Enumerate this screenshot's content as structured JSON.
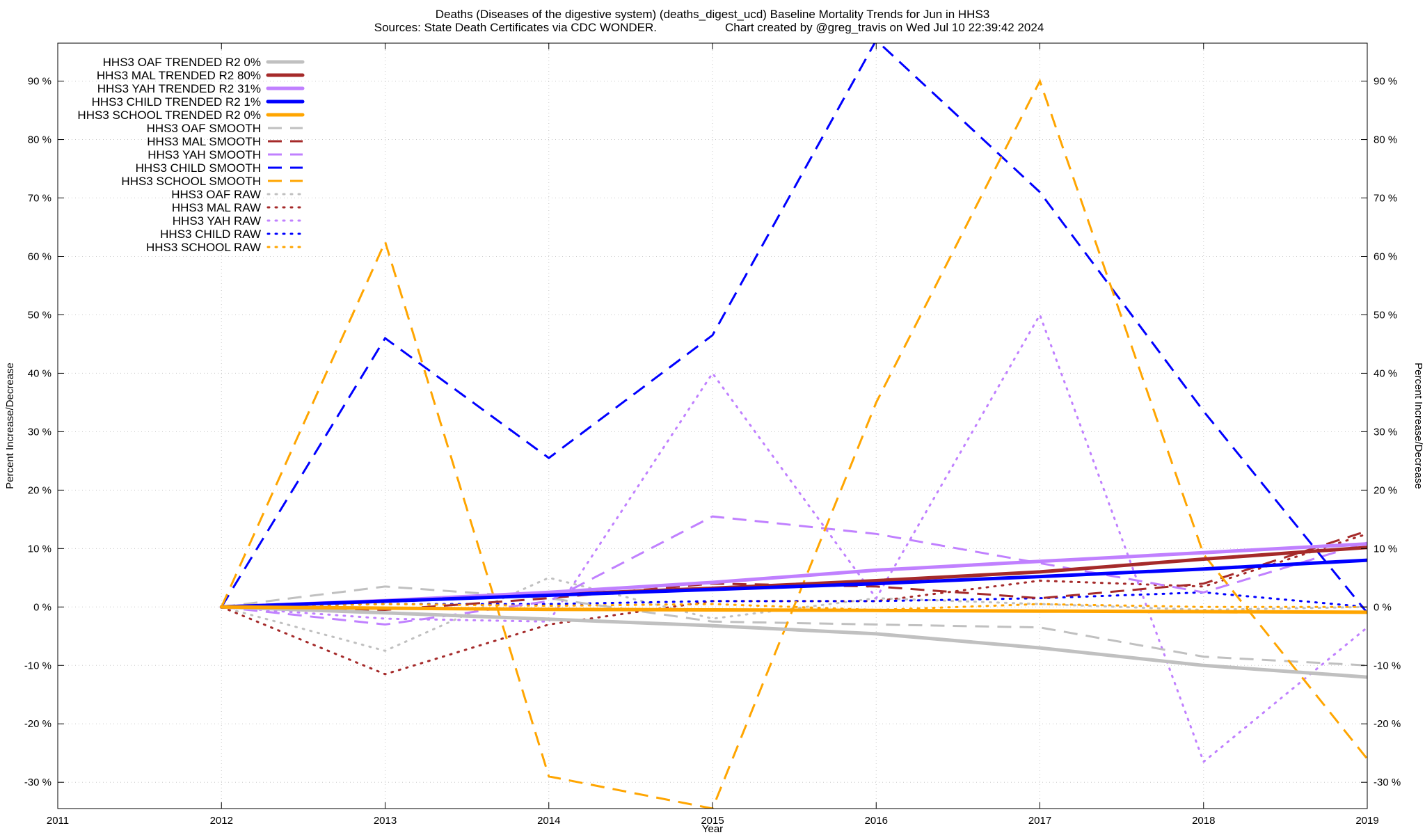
{
  "chart_data": {
    "type": "line",
    "title": "Deaths (Diseases of the digestive system) (deaths_digest_ucd)  Baseline Mortality Trends for Jun in HHS3",
    "subtitle_left": "Sources: State Death Certificates via CDC WONDER.",
    "subtitle_right": "Chart created by @greg_travis on Wed Jul 10 22:39:42 2024",
    "xlabel": "Year",
    "ylabel": "Percent Increase/Decrease",
    "y2label": "Percent Increase/Decrease",
    "xlim": [
      2011,
      2019
    ],
    "ylim": [
      -34.5,
      96.5
    ],
    "x_ticks": [
      "2011",
      "2012",
      "2013",
      "2014",
      "2015",
      "2016",
      "2017",
      "2018",
      "2019"
    ],
    "y_ticks": [
      "-30 %",
      "-20 %",
      "-10 %",
      "0 %",
      "10 %",
      "20 %",
      "30 %",
      "40 %",
      "50 %",
      "60 %",
      "70 %",
      "80 %",
      "90 %"
    ],
    "y_tick_values": [
      -30,
      -20,
      -10,
      0,
      10,
      20,
      30,
      40,
      50,
      60,
      70,
      80,
      90
    ],
    "grid": true,
    "legend_position": "top-left",
    "x": [
      2012,
      2013,
      2014,
      2015,
      2016,
      2017,
      2018,
      2019
    ],
    "series": [
      {
        "name": "HHS3 OAF TRENDED R2  0%",
        "color": "#c0c0c0",
        "style": "solid",
        "values": [
          0,
          -1.0,
          -2.1,
          -3.2,
          -4.6,
          -7.0,
          -10.0,
          -12.0
        ]
      },
      {
        "name": "HHS3 MAL TRENDED R2  80%",
        "color": "#a52a2a",
        "style": "solid",
        "values": [
          0,
          1.0,
          2.1,
          3.2,
          4.5,
          6.0,
          8.2,
          10.2
        ]
      },
      {
        "name": "HHS3 YAH TRENDED R2  31%",
        "color": "#c080ff",
        "style": "solid",
        "values": [
          0,
          1.1,
          2.5,
          4.2,
          6.3,
          7.8,
          9.3,
          10.8
        ]
      },
      {
        "name": "HHS3 CHILD TRENDED R2   1%",
        "color": "#0000ff",
        "style": "solid",
        "values": [
          0,
          1.0,
          2.0,
          3.0,
          4.0,
          5.2,
          6.5,
          8.0
        ]
      },
      {
        "name": "HHS3 SCHOOL TRENDED R2   0%",
        "color": "#ffa500",
        "style": "solid",
        "values": [
          0,
          -0.2,
          -0.4,
          -0.5,
          -0.6,
          -0.7,
          -0.8,
          -0.9
        ]
      },
      {
        "name": "HHS3 OAF SMOOTH",
        "color": "#c0c0c0",
        "style": "dash",
        "values": [
          0,
          3.5,
          1.5,
          -2.5,
          -3.0,
          -3.5,
          -8.5,
          -10.0
        ]
      },
      {
        "name": "HHS3 MAL SMOOTH",
        "color": "#a52a2a",
        "style": "dash",
        "values": [
          0,
          -0.5,
          1.5,
          4.0,
          3.5,
          1.5,
          4.0,
          13.0
        ]
      },
      {
        "name": "HHS3 YAH SMOOTH",
        "color": "#c080ff",
        "style": "dash",
        "values": [
          0,
          -3.0,
          1.0,
          15.5,
          12.5,
          7.5,
          2.5,
          11.0
        ]
      },
      {
        "name": "HHS3 CHILD SMOOTH",
        "color": "#0000ff",
        "style": "dash",
        "values": [
          0,
          46.0,
          25.5,
          46.5,
          97.0,
          71.0,
          33.5,
          -1.0
        ]
      },
      {
        "name": "HHS3 SCHOOL SMOOTH",
        "color": "#ffa500",
        "style": "dash",
        "values": [
          0,
          62.5,
          -29.0,
          -34.5,
          35.0,
          90.0,
          9.0,
          -26.0
        ]
      },
      {
        "name": "HHS3 OAF RAW",
        "color": "#c0c0c0",
        "style": "dot",
        "values": [
          0,
          -7.5,
          5.0,
          -2.0,
          1.5,
          0.5,
          -0.5,
          0.0
        ]
      },
      {
        "name": "HHS3 MAL RAW",
        "color": "#a52a2a",
        "style": "dot",
        "values": [
          0,
          -11.5,
          -3.0,
          1.0,
          1.0,
          4.5,
          3.5,
          12.5
        ]
      },
      {
        "name": "HHS3 YAH RAW",
        "color": "#c080ff",
        "style": "dot",
        "values": [
          0,
          -2.0,
          -2.5,
          40.0,
          1.5,
          50.0,
          -26.5,
          -3.5
        ]
      },
      {
        "name": "HHS3 CHILD RAW",
        "color": "#0000ff",
        "style": "dot",
        "values": [
          0,
          0.5,
          0.5,
          1.0,
          1.0,
          1.5,
          2.5,
          0.0
        ]
      },
      {
        "name": "HHS3 SCHOOL RAW",
        "color": "#ffa500",
        "style": "dot",
        "values": [
          0,
          0.5,
          0.2,
          0.5,
          -0.5,
          0.5,
          0.0,
          0.0
        ]
      }
    ]
  }
}
